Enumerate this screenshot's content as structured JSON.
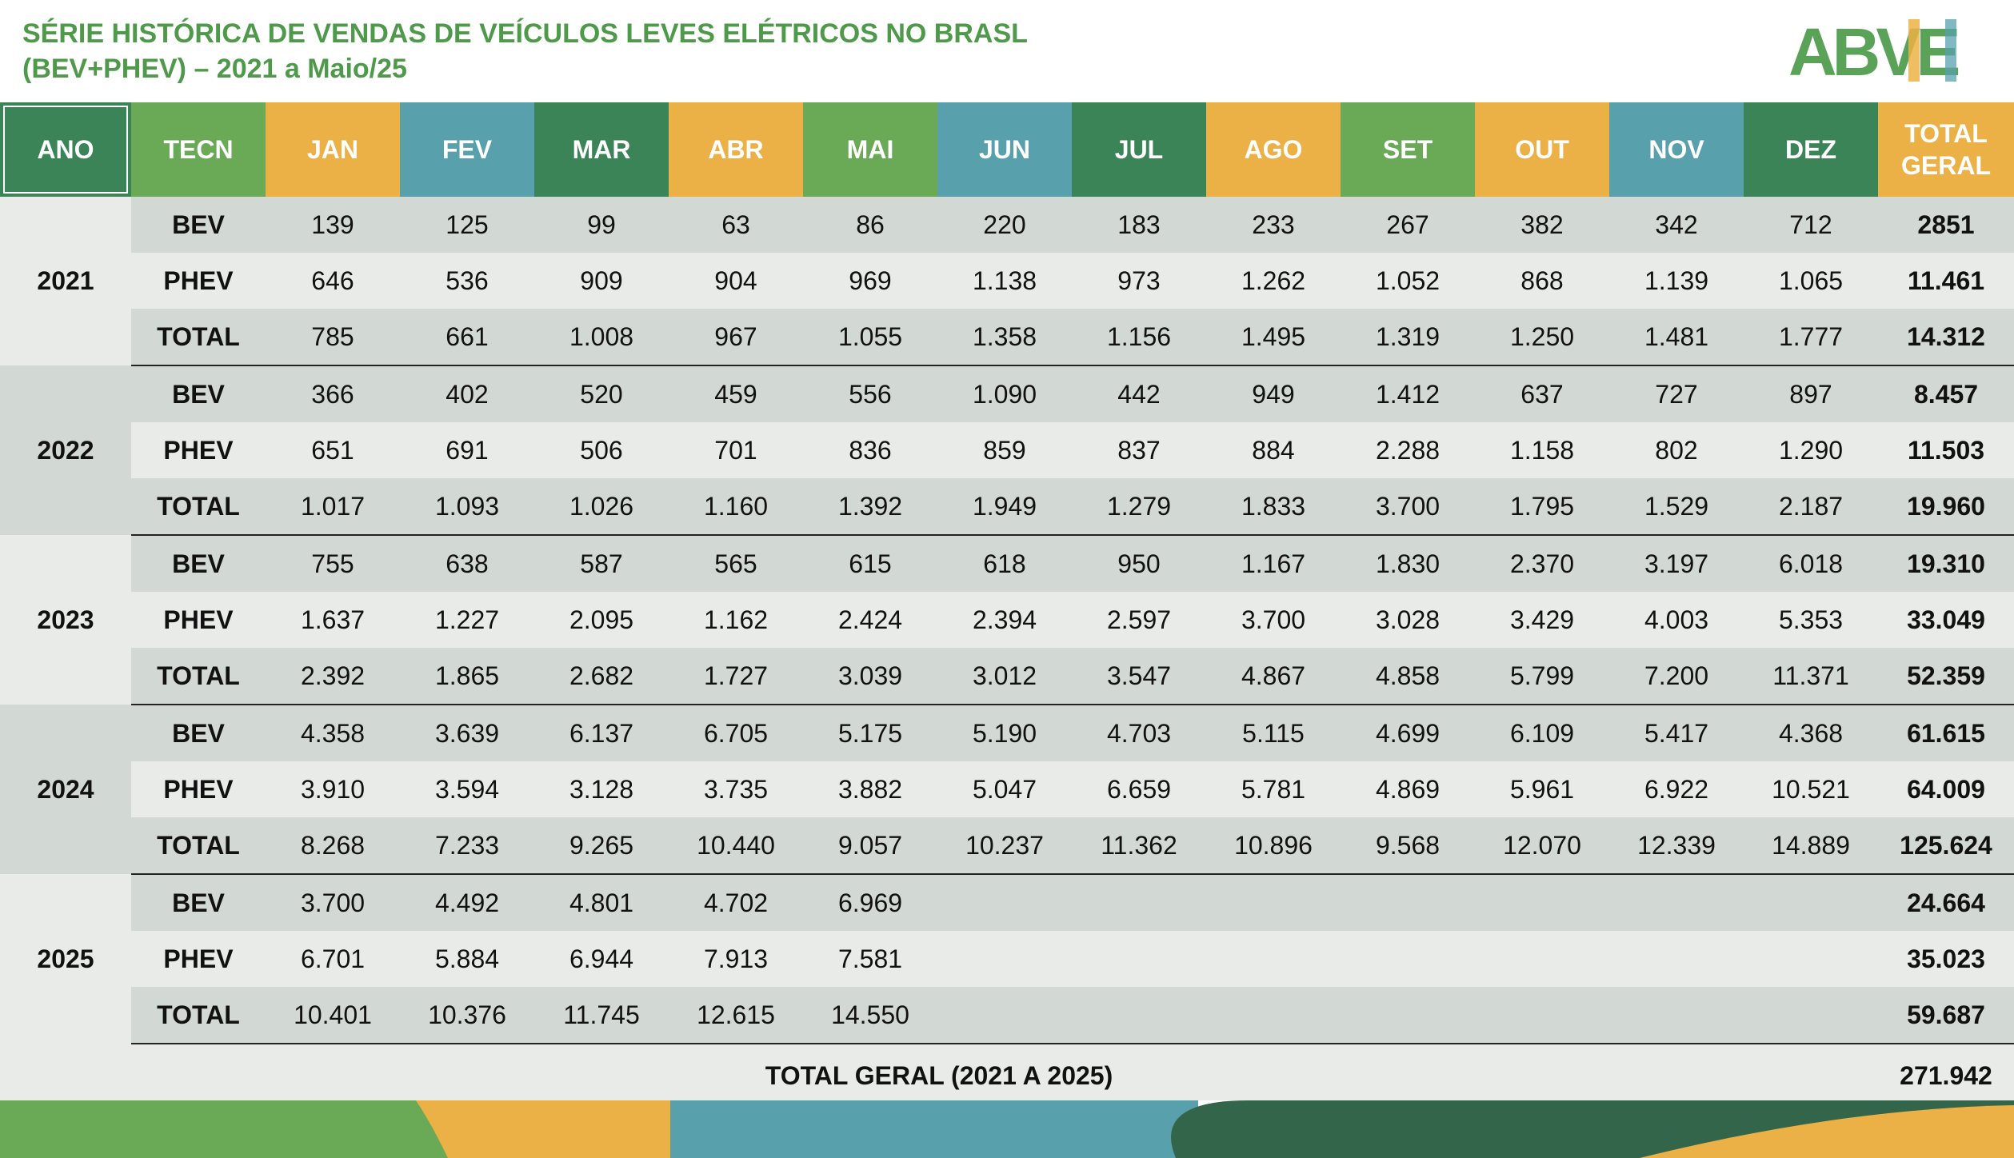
{
  "header": {
    "title_line1": "SÉRIE HISTÓRICA DE VENDAS DE VEÍCULOS LEVES ELÉTRICOS NO BRASL",
    "title_line2": "(BEV+PHEV) – 2021 a Maio/25",
    "logo_text": "ABVE"
  },
  "table": {
    "headers": {
      "ano": "ANO",
      "tecn": "TECN",
      "months": [
        "JAN",
        "FEV",
        "MAR",
        "ABR",
        "MAI",
        "JUN",
        "JUL",
        "AGO",
        "SET",
        "OUT",
        "NOV",
        "DEZ"
      ],
      "total_line1": "TOTAL",
      "total_line2": "GERAL"
    },
    "years": [
      {
        "year": "2021",
        "rows": [
          {
            "tec": "BEV",
            "values": [
              "139",
              "125",
              "99",
              "63",
              "86",
              "220",
              "183",
              "233",
              "267",
              "382",
              "342",
              "712"
            ],
            "total": "2851"
          },
          {
            "tec": "PHEV",
            "values": [
              "646",
              "536",
              "909",
              "904",
              "969",
              "1.138",
              "973",
              "1.262",
              "1.052",
              "868",
              "1.139",
              "1.065"
            ],
            "total": "11.461"
          },
          {
            "tec": "TOTAL",
            "values": [
              "785",
              "661",
              "1.008",
              "967",
              "1.055",
              "1.358",
              "1.156",
              "1.495",
              "1.319",
              "1.250",
              "1.481",
              "1.777"
            ],
            "total": "14.312"
          }
        ]
      },
      {
        "year": "2022",
        "rows": [
          {
            "tec": "BEV",
            "values": [
              "366",
              "402",
              "520",
              "459",
              "556",
              "1.090",
              "442",
              "949",
              "1.412",
              "637",
              "727",
              "897"
            ],
            "total": "8.457"
          },
          {
            "tec": "PHEV",
            "values": [
              "651",
              "691",
              "506",
              "701",
              "836",
              "859",
              "837",
              "884",
              "2.288",
              "1.158",
              "802",
              "1.290"
            ],
            "total": "11.503"
          },
          {
            "tec": "TOTAL",
            "values": [
              "1.017",
              "1.093",
              "1.026",
              "1.160",
              "1.392",
              "1.949",
              "1.279",
              "1.833",
              "3.700",
              "1.795",
              "1.529",
              "2.187"
            ],
            "total": "19.960"
          }
        ]
      },
      {
        "year": "2023",
        "rows": [
          {
            "tec": "BEV",
            "values": [
              "755",
              "638",
              "587",
              "565",
              "615",
              "618",
              "950",
              "1.167",
              "1.830",
              "2.370",
              "3.197",
              "6.018"
            ],
            "total": "19.310"
          },
          {
            "tec": "PHEV",
            "values": [
              "1.637",
              "1.227",
              "2.095",
              "1.162",
              "2.424",
              "2.394",
              "2.597",
              "3.700",
              "3.028",
              "3.429",
              "4.003",
              "5.353"
            ],
            "total": "33.049"
          },
          {
            "tec": "TOTAL",
            "values": [
              "2.392",
              "1.865",
              "2.682",
              "1.727",
              "3.039",
              "3.012",
              "3.547",
              "4.867",
              "4.858",
              "5.799",
              "7.200",
              "11.371"
            ],
            "total": "52.359"
          }
        ]
      },
      {
        "year": "2024",
        "rows": [
          {
            "tec": "BEV",
            "values": [
              "4.358",
              "3.639",
              "6.137",
              "6.705",
              "5.175",
              "5.190",
              "4.703",
              "5.115",
              "4.699",
              "6.109",
              "5.417",
              "4.368"
            ],
            "total": "61.615"
          },
          {
            "tec": "PHEV",
            "values": [
              "3.910",
              "3.594",
              "3.128",
              "3.735",
              "3.882",
              "5.047",
              "6.659",
              "5.781",
              "4.869",
              "5.961",
              "6.922",
              "10.521"
            ],
            "total": "64.009"
          },
          {
            "tec": "TOTAL",
            "values": [
              "8.268",
              "7.233",
              "9.265",
              "10.440",
              "9.057",
              "10.237",
              "11.362",
              "10.896",
              "9.568",
              "12.070",
              "12.339",
              "14.889"
            ],
            "total": "125.624"
          }
        ]
      },
      {
        "year": "2025",
        "rows": [
          {
            "tec": "BEV",
            "values": [
              "3.700",
              "4.492",
              "4.801",
              "4.702",
              "6.969",
              "",
              "",
              "",
              "",
              "",
              "",
              ""
            ],
            "total": "24.664"
          },
          {
            "tec": "PHEV",
            "values": [
              "6.701",
              "5.884",
              "6.944",
              "7.913",
              "7.581",
              "",
              "",
              "",
              "",
              "",
              "",
              ""
            ],
            "total": "35.023"
          },
          {
            "tec": "TOTAL",
            "values": [
              "10.401",
              "10.376",
              "11.745",
              "12.615",
              "14.550",
              "",
              "",
              "",
              "",
              "",
              "",
              ""
            ],
            "total": "59.687"
          }
        ]
      }
    ],
    "grand_total_label": "TOTAL GERAL (2021 A 2025)",
    "grand_total_value": "271.942"
  },
  "colors": {
    "green": "#6aaa57",
    "dark_green": "#3a8458",
    "orange": "#ecb146",
    "teal": "#57a0ac",
    "row_dark": "#d2d8d3",
    "row_light": "#e9ebe9",
    "title": "#4f9a4a"
  }
}
